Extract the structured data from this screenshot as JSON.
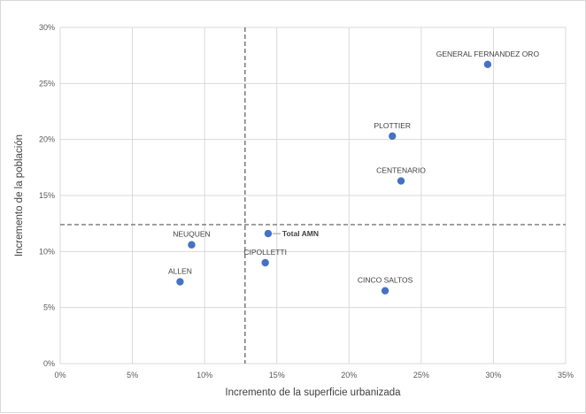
{
  "chart_data": {
    "type": "scatter",
    "xlabel": "Incremento de la superficie urbanizada",
    "ylabel": "Incremento de la población",
    "xlim": [
      0,
      35
    ],
    "ylim": [
      0,
      30
    ],
    "x_ticks": [
      {
        "value": 0,
        "label": "0%"
      },
      {
        "value": 5,
        "label": "5%"
      },
      {
        "value": 10,
        "label": "10%"
      },
      {
        "value": 15,
        "label": "15%"
      },
      {
        "value": 20,
        "label": "20%"
      },
      {
        "value": 25,
        "label": "25%"
      },
      {
        "value": 30,
        "label": "30%"
      },
      {
        "value": 35,
        "label": "35%"
      }
    ],
    "y_ticks": [
      {
        "value": 0,
        "label": "0%"
      },
      {
        "value": 5,
        "label": "5%"
      },
      {
        "value": 10,
        "label": "10%"
      },
      {
        "value": 15,
        "label": "15%"
      },
      {
        "value": 20,
        "label": "20%"
      },
      {
        "value": 25,
        "label": "25%"
      },
      {
        "value": 30,
        "label": "30%"
      }
    ],
    "grid": true,
    "reference_lines": {
      "x": 12.8,
      "y": 12.4
    },
    "point_color": "#4472c4",
    "points": [
      {
        "label": "GENERAL FERNANDEZ ORO",
        "x": 29.6,
        "y": 26.7,
        "label_pos": "above"
      },
      {
        "label": "PLOTTIER",
        "x": 23.0,
        "y": 20.3,
        "label_pos": "above"
      },
      {
        "label": "CENTENARIO",
        "x": 23.6,
        "y": 16.3,
        "label_pos": "above"
      },
      {
        "label": "Total AMN",
        "x": 14.4,
        "y": 11.6,
        "label_pos": "right",
        "bold": true
      },
      {
        "label": "NEUQUEN",
        "x": 9.1,
        "y": 10.6,
        "label_pos": "above"
      },
      {
        "label": "CIPOLLETTI",
        "x": 14.2,
        "y": 9.0,
        "label_pos": "above"
      },
      {
        "label": "ALLEN",
        "x": 8.3,
        "y": 7.3,
        "label_pos": "above"
      },
      {
        "label": "CINCO SALTOS",
        "x": 22.5,
        "y": 6.5,
        "label_pos": "above"
      }
    ]
  }
}
